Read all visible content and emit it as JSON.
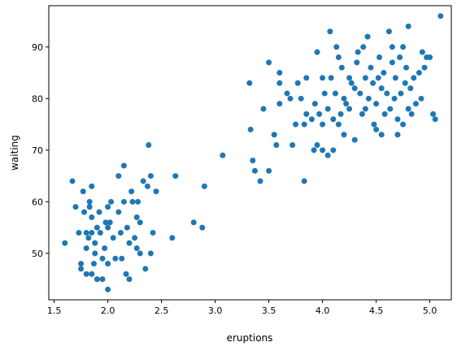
{
  "chart_data": {
    "type": "scatter",
    "xlabel": "eruptions",
    "ylabel": "waiting",
    "xlim": [
      1.45,
      5.2
    ],
    "ylim": [
      41,
      98
    ],
    "x_ticks": [
      1.5,
      2.0,
      2.5,
      3.0,
      3.5,
      4.0,
      4.5,
      5.0
    ],
    "x_tick_labels": [
      "1.5",
      "2.0",
      "2.5",
      "3.0",
      "3.5",
      "4.0",
      "4.5",
      "5.0"
    ],
    "y_ticks": [
      50,
      60,
      70,
      80,
      90
    ],
    "y_tick_labels": [
      "50",
      "60",
      "70",
      "80",
      "90"
    ],
    "grid": false,
    "marker_color": "#1f77b4",
    "points": [
      [
        1.6,
        52
      ],
      [
        1.67,
        64
      ],
      [
        1.7,
        59
      ],
      [
        1.73,
        54
      ],
      [
        1.75,
        47
      ],
      [
        1.75,
        48
      ],
      [
        1.77,
        62
      ],
      [
        1.78,
        58
      ],
      [
        1.8,
        54
      ],
      [
        1.8,
        51
      ],
      [
        1.8,
        46
      ],
      [
        1.82,
        53
      ],
      [
        1.83,
        60
      ],
      [
        1.83,
        59
      ],
      [
        1.85,
        63
      ],
      [
        1.85,
        57
      ],
      [
        1.85,
        54
      ],
      [
        1.85,
        46
      ],
      [
        1.87,
        48
      ],
      [
        1.88,
        52
      ],
      [
        1.88,
        50
      ],
      [
        1.9,
        45
      ],
      [
        1.9,
        55
      ],
      [
        1.92,
        58
      ],
      [
        1.93,
        54
      ],
      [
        1.95,
        49
      ],
      [
        1.95,
        45
      ],
      [
        1.97,
        51
      ],
      [
        1.98,
        56
      ],
      [
        2.0,
        59
      ],
      [
        2.0,
        55
      ],
      [
        2.0,
        43
      ],
      [
        2.0,
        48
      ],
      [
        2.02,
        56
      ],
      [
        2.03,
        60
      ],
      [
        2.05,
        53
      ],
      [
        2.07,
        49
      ],
      [
        2.1,
        65
      ],
      [
        2.1,
        58
      ],
      [
        2.12,
        54
      ],
      [
        2.13,
        49
      ],
      [
        2.15,
        67
      ],
      [
        2.15,
        60
      ],
      [
        2.17,
        46
      ],
      [
        2.18,
        55
      ],
      [
        2.2,
        52
      ],
      [
        2.2,
        45
      ],
      [
        2.22,
        62
      ],
      [
        2.23,
        60
      ],
      [
        2.25,
        53
      ],
      [
        2.27,
        51
      ],
      [
        2.27,
        57
      ],
      [
        2.28,
        60
      ],
      [
        2.3,
        50
      ],
      [
        2.3,
        56
      ],
      [
        2.33,
        64
      ],
      [
        2.35,
        47
      ],
      [
        2.37,
        63
      ],
      [
        2.38,
        71
      ],
      [
        2.4,
        50
      ],
      [
        2.4,
        65
      ],
      [
        2.42,
        54
      ],
      [
        2.45,
        62
      ],
      [
        2.6,
        53
      ],
      [
        2.63,
        65
      ],
      [
        2.8,
        56
      ],
      [
        2.88,
        55
      ],
      [
        2.9,
        63
      ],
      [
        3.07,
        69
      ],
      [
        3.32,
        83
      ],
      [
        3.33,
        74
      ],
      [
        3.35,
        68
      ],
      [
        3.37,
        66
      ],
      [
        3.42,
        64
      ],
      [
        3.45,
        78
      ],
      [
        3.5,
        87
      ],
      [
        3.5,
        66
      ],
      [
        3.55,
        73
      ],
      [
        3.57,
        71
      ],
      [
        3.6,
        79
      ],
      [
        3.6,
        83
      ],
      [
        3.6,
        85
      ],
      [
        3.67,
        81
      ],
      [
        3.7,
        80
      ],
      [
        3.72,
        71
      ],
      [
        3.75,
        75
      ],
      [
        3.77,
        83
      ],
      [
        3.8,
        80
      ],
      [
        3.83,
        64
      ],
      [
        3.83,
        75
      ],
      [
        3.85,
        84
      ],
      [
        3.85,
        77
      ],
      [
        3.9,
        76
      ],
      [
        3.92,
        70
      ],
      [
        3.93,
        79
      ],
      [
        3.95,
        89
      ],
      [
        3.95,
        71
      ],
      [
        3.97,
        77
      ],
      [
        4.0,
        75
      ],
      [
        4.0,
        84
      ],
      [
        4.0,
        70
      ],
      [
        4.02,
        81
      ],
      [
        4.05,
        78
      ],
      [
        4.05,
        69
      ],
      [
        4.07,
        93
      ],
      [
        4.08,
        84
      ],
      [
        4.1,
        76
      ],
      [
        4.1,
        70
      ],
      [
        4.12,
        81
      ],
      [
        4.13,
        90
      ],
      [
        4.15,
        88
      ],
      [
        4.15,
        75
      ],
      [
        4.17,
        77
      ],
      [
        4.18,
        86
      ],
      [
        4.2,
        80
      ],
      [
        4.2,
        73
      ],
      [
        4.22,
        79
      ],
      [
        4.25,
        84
      ],
      [
        4.25,
        78
      ],
      [
        4.27,
        83
      ],
      [
        4.3,
        72
      ],
      [
        4.3,
        82
      ],
      [
        4.32,
        87
      ],
      [
        4.33,
        89
      ],
      [
        4.35,
        81
      ],
      [
        4.37,
        77
      ],
      [
        4.38,
        90
      ],
      [
        4.4,
        84
      ],
      [
        4.4,
        78
      ],
      [
        4.42,
        92
      ],
      [
        4.43,
        80
      ],
      [
        4.45,
        86
      ],
      [
        4.47,
        83
      ],
      [
        4.48,
        75
      ],
      [
        4.5,
        79
      ],
      [
        4.5,
        74
      ],
      [
        4.52,
        84
      ],
      [
        4.53,
        88
      ],
      [
        4.55,
        82
      ],
      [
        4.55,
        73
      ],
      [
        4.57,
        85
      ],
      [
        4.58,
        77
      ],
      [
        4.6,
        81
      ],
      [
        4.62,
        93
      ],
      [
        4.63,
        78
      ],
      [
        4.65,
        87
      ],
      [
        4.65,
        90
      ],
      [
        4.67,
        80
      ],
      [
        4.68,
        84
      ],
      [
        4.7,
        76
      ],
      [
        4.7,
        73
      ],
      [
        4.72,
        88
      ],
      [
        4.73,
        81
      ],
      [
        4.75,
        90
      ],
      [
        4.75,
        75
      ],
      [
        4.77,
        83
      ],
      [
        4.78,
        86
      ],
      [
        4.8,
        94
      ],
      [
        4.8,
        78
      ],
      [
        4.82,
        82
      ],
      [
        4.83,
        77
      ],
      [
        4.85,
        84
      ],
      [
        4.87,
        79
      ],
      [
        4.9,
        85
      ],
      [
        4.92,
        80
      ],
      [
        4.93,
        89
      ],
      [
        4.95,
        86
      ],
      [
        4.97,
        88
      ],
      [
        5.0,
        88
      ],
      [
        5.03,
        77
      ],
      [
        5.05,
        76
      ],
      [
        5.1,
        96
      ]
    ]
  }
}
